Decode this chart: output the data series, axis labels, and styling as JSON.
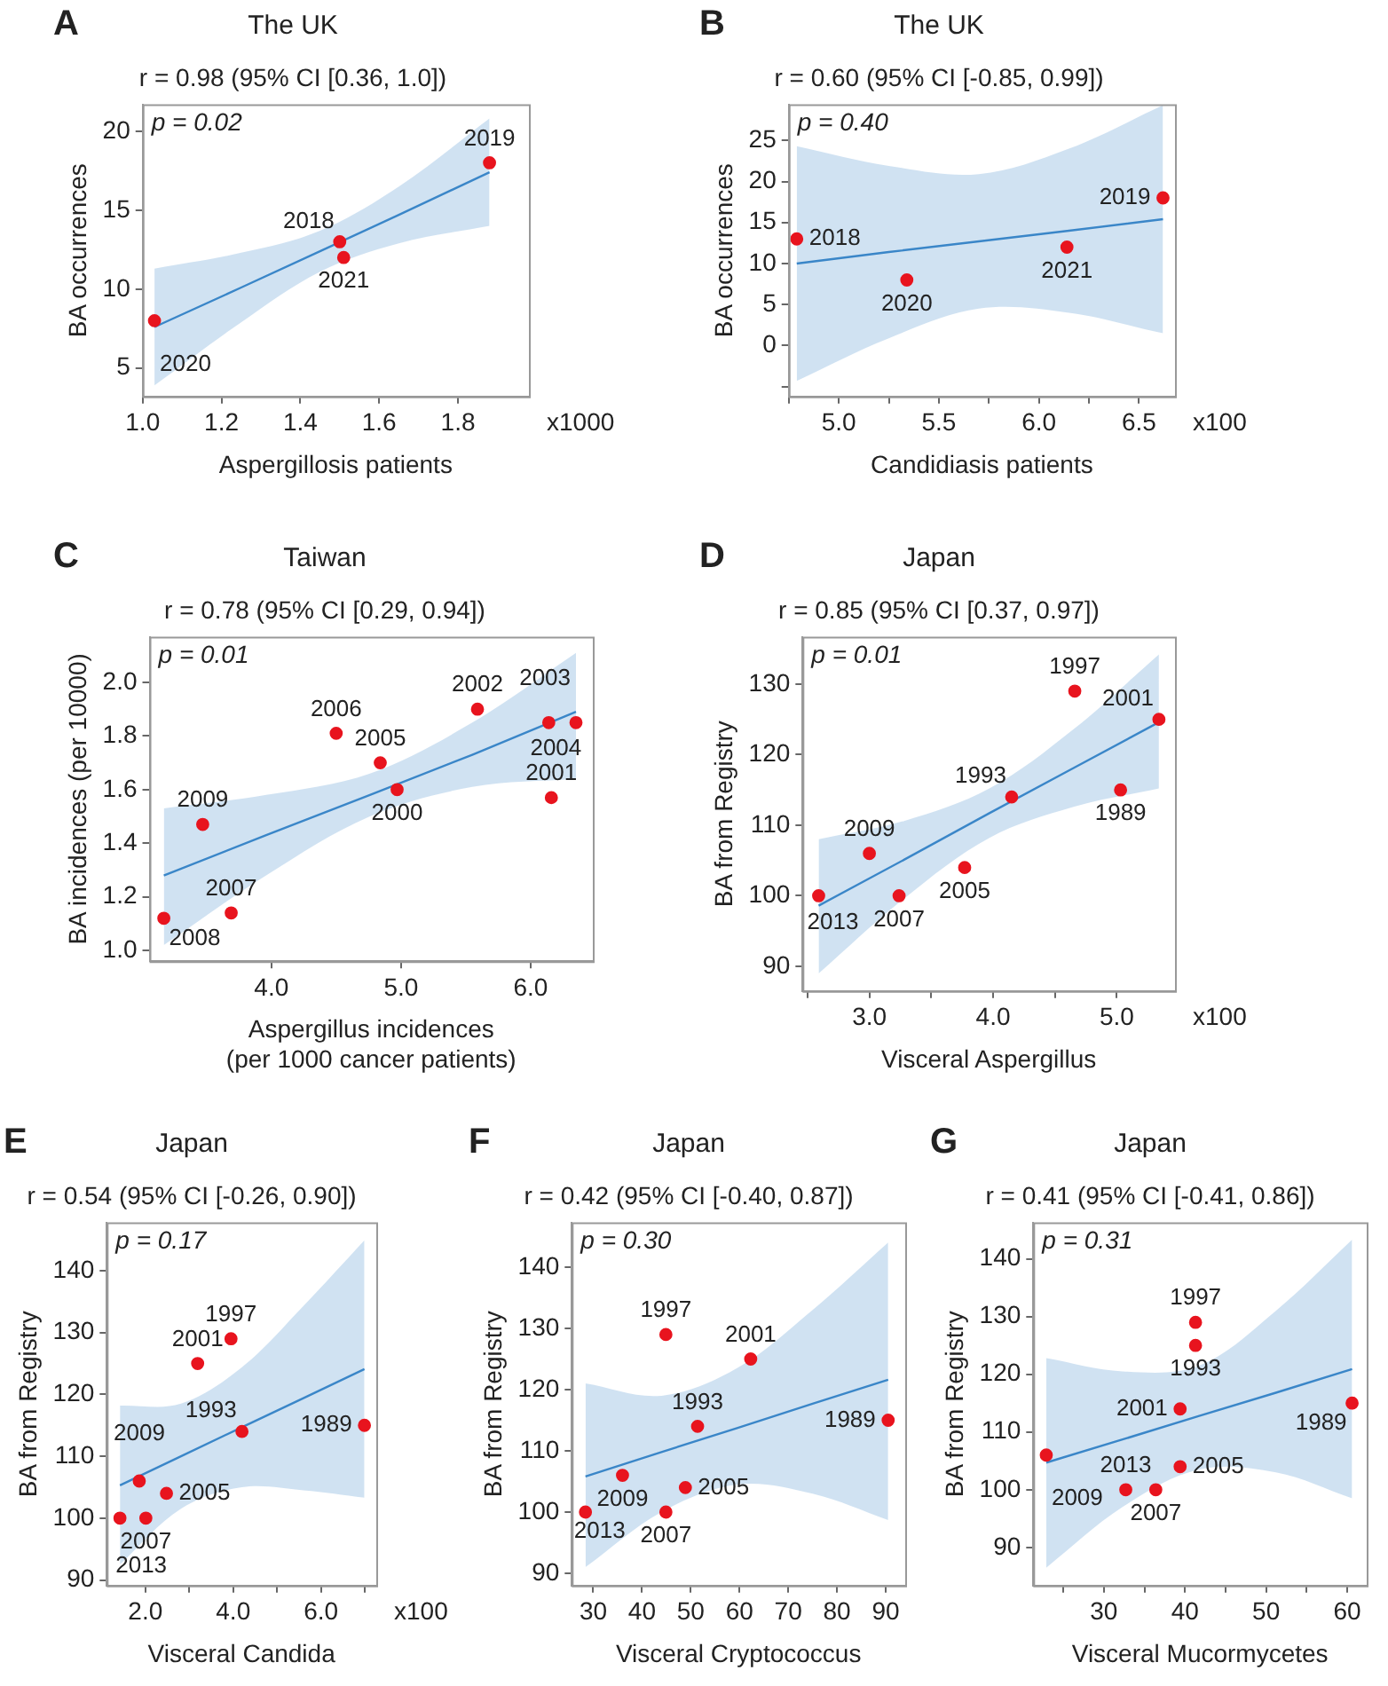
{
  "chart_data": [
    {
      "type": "scatter",
      "title": "The UK",
      "subtitle": "r = 0.98 (95% CI [0.36, 1.0])",
      "xlabel": "Aspergillosis patients",
      "ylabel": "BA occurrences",
      "xlim": [
        1.0,
        1.98
      ],
      "ylim": [
        3.2,
        21.7
      ],
      "xticks": [
        {
          "value": 1,
          "label": "1.0"
        },
        {
          "value": 1.2,
          "label": "1.2"
        },
        {
          "value": 1.4,
          "label": "1.4"
        },
        {
          "value": 1.6,
          "label": "1.6"
        },
        {
          "value": 1.8,
          "label": "1.8"
        }
      ],
      "yticks": [
        5,
        10,
        15,
        20
      ],
      "series": [
        {
          "type": "line",
          "color": "#3a86c8",
          "x": [
            1.03,
            1.25,
            1.45,
            1.65,
            1.88
          ],
          "values": [
            7.6,
            10.1,
            12.4,
            14.7,
            17.4
          ],
          "lower": [
            3.9,
            7.9,
            11.1,
            12.9,
            14.0
          ],
          "upper": [
            11.3,
            12.3,
            13.7,
            16.5,
            20.8
          ]
        },
        {
          "type": "scatter",
          "marker": "circle",
          "color": "#e8141e",
          "x": [
            1.5,
            1.88,
            1.03,
            1.51
          ],
          "values": [
            13,
            18,
            8,
            12
          ]
        }
      ],
      "annotations": [
        "A",
        "p = 0.02",
        "x1000",
        {
          "text": "2018",
          "x": 1.5,
          "y": 13
        },
        {
          "text": "2019",
          "x": 1.88,
          "y": 18
        },
        {
          "text": "2020",
          "x": 1.03,
          "y": 8
        },
        {
          "text": "2021",
          "x": 1.51,
          "y": 12
        }
      ]
    },
    {
      "type": "scatter",
      "title": "The UK",
      "subtitle": "r = 0.60 (95% CI [-0.85, 0.99])",
      "xlabel": "Candidiasis patients",
      "ylabel": "BA occurrences",
      "xlim": [
        4.75,
        6.68
      ],
      "ylim": [
        -6.2,
        29.4
      ],
      "xticks": [
        {
          "value": 4.75,
          "label": null
        },
        {
          "value": 5,
          "label": "5.0"
        },
        {
          "value": 5.25,
          "label": null
        },
        {
          "value": 5.5,
          "label": "5.5"
        },
        {
          "value": 5.75,
          "label": null
        },
        {
          "value": 6,
          "label": "6.0"
        },
        {
          "value": 6.25,
          "label": null
        },
        {
          "value": 6.5,
          "label": "6.5"
        }
      ],
      "yticks": [
        {
          "value": -5,
          "label": null
        },
        0,
        5,
        10,
        15,
        20,
        25
      ],
      "series": [
        {
          "type": "line",
          "color": "#3a86c8",
          "x": [
            4.79,
            5.25,
            5.7,
            6.15,
            6.62
          ],
          "values": [
            10.0,
            11.4,
            12.7,
            14.0,
            15.4
          ],
          "lower": [
            -4.3,
            0.9,
            4.5,
            4.0,
            1.5
          ],
          "upper": [
            24.3,
            21.9,
            20.9,
            24.0,
            29.3
          ]
        },
        {
          "type": "scatter",
          "marker": "circle",
          "color": "#e8141e",
          "x": [
            4.79,
            6.62,
            5.34,
            6.14
          ],
          "values": [
            13,
            18,
            8,
            12
          ]
        }
      ],
      "annotations": [
        "B",
        "p = 0.40",
        "x100",
        {
          "text": "2018",
          "x": 4.79,
          "y": 13
        },
        {
          "text": "2019",
          "x": 6.62,
          "y": 18
        },
        {
          "text": "2020",
          "x": 5.34,
          "y": 8
        },
        {
          "text": "2021",
          "x": 6.14,
          "y": 12
        }
      ]
    },
    {
      "type": "scatter",
      "title": "Taiwan",
      "subtitle": "r = 0.78 (95% CI [0.29, 0.94])",
      "xlabel": "Aspergillus incidences (per 1000 cancer patients)",
      "ylabel": "BA incidences (per 10000)",
      "xlim": [
        3.06,
        6.48
      ],
      "ylim": [
        0.96,
        2.17
      ],
      "xticks": [
        {
          "value": 4,
          "label": "4.0"
        },
        {
          "value": 5,
          "label": "5.0"
        },
        {
          "value": 6,
          "label": "6.0"
        }
      ],
      "yticks": [
        {
          "value": 1,
          "label": "1.0"
        },
        {
          "value": 1.2,
          "label": "1.2"
        },
        {
          "value": 1.4,
          "label": "1.4"
        },
        {
          "value": 1.6,
          "label": "1.6"
        },
        {
          "value": 1.8,
          "label": "1.8"
        },
        {
          "value": 2,
          "label": "2.0"
        }
      ],
      "series": [
        {
          "type": "line",
          "color": "#3a86c8",
          "x": [
            3.17,
            3.96,
            4.76,
            5.55,
            6.35
          ],
          "values": [
            1.28,
            1.43,
            1.58,
            1.73,
            1.89
          ],
          "lower": [
            1.02,
            1.28,
            1.5,
            1.61,
            1.64
          ],
          "upper": [
            1.53,
            1.58,
            1.66,
            1.85,
            2.11
          ]
        },
        {
          "type": "scatter",
          "marker": "circle",
          "color": "#e8141e",
          "x": [
            4.97,
            6.16,
            5.59,
            6.35,
            6.14,
            4.84,
            4.5,
            3.69,
            3.17,
            3.47
          ],
          "values": [
            1.6,
            1.57,
            1.9,
            1.85,
            1.85,
            1.7,
            1.81,
            1.14,
            1.12,
            1.47
          ]
        }
      ],
      "annotations": [
        "C",
        "p = 0.01",
        {
          "text": "2000",
          "x": 4.97,
          "y": 1.6
        },
        {
          "text": "2001",
          "x": 6.16,
          "y": 1.57
        },
        {
          "text": "2002",
          "x": 5.59,
          "y": 1.9
        },
        {
          "text": "2003",
          "x": 6.35,
          "y": 1.85
        },
        {
          "text": "2004",
          "x": 6.14,
          "y": 1.85
        },
        {
          "text": "2005",
          "x": 4.84,
          "y": 1.7
        },
        {
          "text": "2006",
          "x": 4.5,
          "y": 1.81
        },
        {
          "text": "2007",
          "x": 3.69,
          "y": 1.14
        },
        {
          "text": "2008",
          "x": 3.17,
          "y": 1.12
        },
        {
          "text": "2009",
          "x": 3.47,
          "y": 1.47
        }
      ]
    },
    {
      "type": "scatter",
      "title": "Japan",
      "subtitle": "r = 0.85 (95% CI [0.37, 0.97])",
      "xlabel": "Visceral Aspergillus",
      "ylabel": "BA from Registry",
      "xlim": [
        2.46,
        5.47
      ],
      "ylim": [
        86.5,
        136.7
      ],
      "xticks": [
        {
          "value": 2.5,
          "label": null
        },
        {
          "value": 3,
          "label": "3.0"
        },
        {
          "value": 3.5,
          "label": null
        },
        {
          "value": 4,
          "label": "4.0"
        },
        {
          "value": 4.5,
          "label": null
        },
        {
          "value": 5,
          "label": "5.0"
        }
      ],
      "yticks": [
        90,
        100,
        110,
        120,
        130
      ],
      "series": [
        {
          "type": "line",
          "color": "#3a86c8",
          "x": [
            2.59,
            3.28,
            3.97,
            4.65,
            5.34
          ],
          "values": [
            98.6,
            105.1,
            111.7,
            118.1,
            124.6
          ],
          "lower": [
            89,
            99.6,
            108.2,
            112.6,
            115.2
          ],
          "upper": [
            108,
            110.6,
            115.2,
            123.6,
            134.2
          ]
        },
        {
          "type": "scatter",
          "marker": "circle",
          "color": "#e8141e",
          "x": [
            5.03,
            4.15,
            4.66,
            5.34,
            3.77,
            3.24,
            3.0,
            2.59
          ],
          "values": [
            115,
            114,
            129,
            125,
            104,
            100,
            106,
            100
          ]
        }
      ],
      "annotations": [
        "D",
        "p = 0.01",
        "x100",
        {
          "text": "1989",
          "x": 5.03,
          "y": 115
        },
        {
          "text": "1993",
          "x": 4.15,
          "y": 114
        },
        {
          "text": "1997",
          "x": 4.66,
          "y": 129
        },
        {
          "text": "2001",
          "x": 5.34,
          "y": 125
        },
        {
          "text": "2005",
          "x": 3.77,
          "y": 104
        },
        {
          "text": "2007",
          "x": 3.24,
          "y": 100
        },
        {
          "text": "2009",
          "x": 3.0,
          "y": 106
        },
        {
          "text": "2013",
          "x": 2.59,
          "y": 100
        }
      ]
    },
    {
      "type": "scatter",
      "title": "Japan",
      "subtitle": "r = 0.54 (95% CI [-0.26, 0.90])",
      "xlabel": "Visceral Candida",
      "ylabel": "BA from Registry",
      "xlim": [
        1.12,
        7.26
      ],
      "ylim": [
        89.1,
        147.8
      ],
      "xticks": [
        {
          "value": 2,
          "label": "2.0"
        },
        {
          "value": 3,
          "label": null
        },
        {
          "value": 4,
          "label": "4.0"
        },
        {
          "value": 5,
          "label": null
        },
        {
          "value": 6,
          "label": "6.0"
        },
        {
          "value": 7,
          "label": null
        }
      ],
      "yticks": [
        90,
        100,
        110,
        120,
        130,
        140
      ],
      "series": [
        {
          "type": "line",
          "color": "#3a86c8",
          "x": [
            1.42,
            2.81,
            4.2,
            5.6,
            6.99
          ],
          "values": [
            105.3,
            110.0,
            114.7,
            119.4,
            124.1
          ],
          "lower": [
            92.5,
            101.5,
            105.0,
            104.5,
            103.3
          ],
          "upper": [
            118.2,
            118.5,
            124.4,
            134.3,
            144.9
          ]
        },
        {
          "type": "scatter",
          "marker": "circle",
          "color": "#e8141e",
          "x": [
            6.99,
            4.2,
            3.95,
            3.19,
            2.48,
            2.01,
            1.86,
            1.42
          ],
          "values": [
            115,
            114,
            129,
            125,
            104,
            100,
            106,
            100
          ]
        }
      ],
      "annotations": [
        "E",
        "p = 0.17",
        "x100",
        {
          "text": "1989",
          "x": 6.99,
          "y": 115
        },
        {
          "text": "1993",
          "x": 4.2,
          "y": 114
        },
        {
          "text": "1997",
          "x": 3.95,
          "y": 129
        },
        {
          "text": "2001",
          "x": 3.19,
          "y": 125
        },
        {
          "text": "2005",
          "x": 2.48,
          "y": 104
        },
        {
          "text": "2007",
          "x": 2.01,
          "y": 100
        },
        {
          "text": "2009",
          "x": 1.86,
          "y": 106
        },
        {
          "text": "2013",
          "x": 1.42,
          "y": 100
        }
      ]
    },
    {
      "type": "scatter",
      "title": "Japan",
      "subtitle": "r = 0.42 (95% CI [-0.40, 0.87])",
      "xlabel": "Visceral Cryptococcus",
      "ylabel": "BA from Registry",
      "xlim": [
        25.6,
        94
      ],
      "ylim": [
        88,
        147.3
      ],
      "xticks": [
        30,
        40,
        50,
        60,
        70,
        80,
        90
      ],
      "yticks": [
        90,
        100,
        110,
        120,
        130,
        140
      ],
      "series": [
        {
          "type": "line",
          "color": "#3a86c8",
          "x": [
            28.4,
            44,
            59.5,
            75,
            90.5
          ],
          "values": [
            105.8,
            109.8,
            113.7,
            117.7,
            121.6
          ],
          "lower": [
            91,
            100,
            104.5,
            103,
            98.7
          ],
          "upper": [
            121,
            119,
            123.5,
            133,
            144
          ]
        },
        {
          "type": "scatter",
          "marker": "circle",
          "color": "#e8141e",
          "x": [
            90.5,
            51.4,
            44.9,
            62.3,
            48.9,
            44.9,
            36,
            28.4
          ],
          "values": [
            115,
            114,
            129,
            125,
            104,
            100,
            106,
            100
          ]
        }
      ],
      "annotations": [
        "F",
        "p = 0.30",
        {
          "text": "1989",
          "x": 90.5,
          "y": 115
        },
        {
          "text": "1993",
          "x": 51.4,
          "y": 114
        },
        {
          "text": "1997",
          "x": 44.9,
          "y": 129
        },
        {
          "text": "2001",
          "x": 62.3,
          "y": 125
        },
        {
          "text": "2005",
          "x": 48.9,
          "y": 104
        },
        {
          "text": "2007",
          "x": 44.9,
          "y": 100
        },
        {
          "text": "2009",
          "x": 36,
          "y": 106
        },
        {
          "text": "2013",
          "x": 28.4,
          "y": 100
        }
      ]
    },
    {
      "type": "scatter",
      "title": "Japan",
      "subtitle": "r = 0.41 (95% CI [-0.41, 0.86])",
      "xlabel": "Visceral Mucormycetes",
      "ylabel": "BA from Registry",
      "xlim": [
        21.3,
        62.4
      ],
      "ylim": [
        83.4,
        146.3
      ],
      "xticks": [
        {
          "value": 25,
          "label": null
        },
        30,
        {
          "value": 35,
          "label": null
        },
        40,
        {
          "value": 45,
          "label": null
        },
        50,
        {
          "value": 55,
          "label": null
        },
        60
      ],
      "yticks": [
        90,
        100,
        110,
        120,
        130,
        140
      ],
      "series": [
        {
          "type": "line",
          "color": "#3a86c8",
          "x": [
            22.9,
            32.3,
            41.75,
            51.2,
            60.6
          ],
          "values": [
            104.7,
            108.7,
            112.8,
            116.8,
            120.9
          ],
          "lower": [
            86.5,
            97,
            103.5,
            103,
            98.5
          ],
          "upper": [
            122.8,
            120.5,
            121.5,
            131,
            143.3
          ]
        },
        {
          "type": "scatter",
          "marker": "circle",
          "color": "#e8141e",
          "x": [
            60.6,
            41.3,
            41.3,
            39.4,
            39.4,
            36.4,
            22.9,
            32.7
          ],
          "values": [
            115,
            125,
            129,
            114,
            104,
            100,
            106,
            100
          ]
        }
      ],
      "annotations": [
        "G",
        "p = 0.31",
        {
          "text": "1989",
          "x": 60.6,
          "y": 115
        },
        {
          "text": "1993",
          "x": 41.3,
          "y": 125
        },
        {
          "text": "1997",
          "x": 41.3,
          "y": 129
        },
        {
          "text": "2001",
          "x": 39.4,
          "y": 114
        },
        {
          "text": "2005",
          "x": 39.4,
          "y": 104
        },
        {
          "text": "2007",
          "x": 36.4,
          "y": 100
        },
        {
          "text": "2009",
          "x": 22.9,
          "y": 106
        },
        {
          "text": "2013",
          "x": 32.7,
          "y": 100
        }
      ]
    }
  ]
}
